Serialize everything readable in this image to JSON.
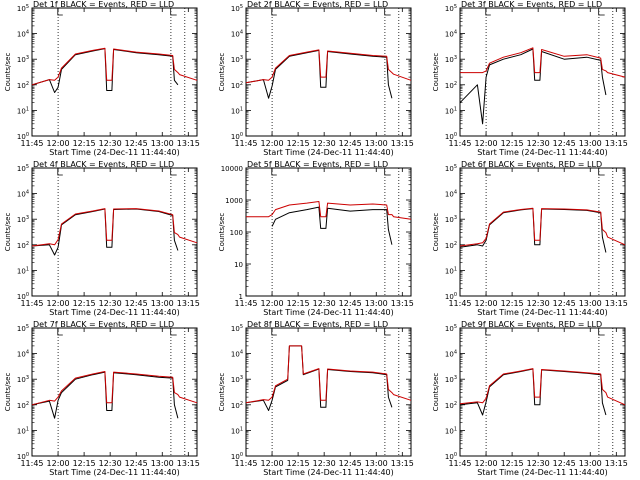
{
  "chart_data": [
    {
      "type": "line",
      "title": "Det 1f BLACK = Events, RED = LLD",
      "xlabel": "Start Time (24-Dec-11 11:44:40)",
      "ylabel": "Counts/sec",
      "yscale": "log",
      "xlim": [
        "11:45",
        "13:20"
      ],
      "ylim": [
        1,
        100000
      ],
      "xticks": [
        "11:45",
        "12:00",
        "12:15",
        "12:30",
        "12:45",
        "13:00",
        "13:15"
      ],
      "yticks": [
        "10^0",
        "10^1",
        "10^2",
        "10^3",
        "10^4",
        "10^5"
      ],
      "series": [
        {
          "color": "#000000",
          "x": [
            "11:45",
            "11:55",
            "11:58",
            "12:00",
            "12:02",
            "12:10",
            "12:20",
            "12:27",
            "12:28",
            "12:31",
            "12:32",
            "12:45",
            "12:58",
            "13:06",
            "13:07",
            "13:09",
            "13:10",
            "13:20"
          ],
          "y": [
            100,
            160,
            50,
            80,
            400,
            1500,
            2100,
            2600,
            60,
            60,
            2400,
            1800,
            1500,
            1300,
            150,
            100,
            null,
            null
          ]
        },
        {
          "color": "#cc0000",
          "x": [
            "11:45",
            "11:55",
            "11:58",
            "12:00",
            "12:02",
            "12:10",
            "12:20",
            "12:27",
            "12:28",
            "12:31",
            "12:32",
            "12:45",
            "12:58",
            "13:06",
            "13:07",
            "13:09",
            "13:10",
            "13:20"
          ],
          "y": [
            100,
            160,
            150,
            200,
            450,
            1600,
            2200,
            2700,
            150,
            150,
            2500,
            1900,
            1600,
            1400,
            400,
            300,
            250,
            150
          ]
        }
      ]
    },
    {
      "type": "line",
      "title": "Det 2f BLACK = Events, RED = LLD",
      "xlabel": "Start Time (24-Dec-11 11:44:40)",
      "ylabel": "Counts/sec",
      "yscale": "log",
      "xlim": [
        "11:45",
        "13:20"
      ],
      "ylim": [
        1,
        100000
      ],
      "xticks": [
        "11:45",
        "12:00",
        "12:15",
        "12:30",
        "12:45",
        "13:00",
        "13:15"
      ],
      "yticks": [
        "10^0",
        "10^1",
        "10^2",
        "10^3",
        "10^4",
        "10^5"
      ],
      "series": [
        {
          "color": "#000000",
          "x": [
            "11:45",
            "11:55",
            "11:58",
            "12:00",
            "12:02",
            "12:10",
            "12:20",
            "12:27",
            "12:28",
            "12:31",
            "12:32",
            "12:45",
            "12:58",
            "13:06",
            "13:07",
            "13:09",
            "13:10",
            "13:20"
          ],
          "y": [
            120,
            160,
            30,
            90,
            400,
            1300,
            1800,
            2200,
            80,
            80,
            2000,
            1600,
            1300,
            1200,
            100,
            30,
            null,
            null
          ]
        },
        {
          "color": "#cc0000",
          "x": [
            "11:45",
            "11:55",
            "11:58",
            "12:00",
            "12:02",
            "12:10",
            "12:20",
            "12:27",
            "12:28",
            "12:31",
            "12:32",
            "12:45",
            "12:58",
            "13:06",
            "13:07",
            "13:09",
            "13:10",
            "13:20"
          ],
          "y": [
            120,
            160,
            150,
            200,
            450,
            1400,
            1900,
            2300,
            200,
            200,
            2100,
            1700,
            1400,
            1300,
            400,
            300,
            260,
            150
          ]
        }
      ]
    },
    {
      "type": "line",
      "title": "Det 3f BLACK = Events, RED = LLD",
      "xlabel": "Start Time (24-Dec-11 11:44:40)",
      "ylabel": "Counts/sec",
      "yscale": "log",
      "xlim": [
        "11:45",
        "13:20"
      ],
      "ylim": [
        1,
        100000
      ],
      "xticks": [
        "11:45",
        "12:00",
        "12:15",
        "12:30",
        "12:45",
        "13:00",
        "13:15"
      ],
      "yticks": [
        "10^0",
        "10^1",
        "10^2",
        "10^3",
        "10^4",
        "10^5"
      ],
      "series": [
        {
          "color": "#000000",
          "x": [
            "11:45",
            "11:55",
            "11:58",
            "12:00",
            "12:02",
            "12:10",
            "12:20",
            "12:27",
            "12:28",
            "12:31",
            "12:32",
            "12:45",
            "12:58",
            "13:06",
            "13:07",
            "13:09",
            "13:10",
            "13:20"
          ],
          "y": [
            20,
            100,
            3,
            200,
            600,
            1000,
            1500,
            2500,
            150,
            150,
            2000,
            1000,
            1200,
            900,
            200,
            40,
            null,
            null
          ]
        },
        {
          "color": "#cc0000",
          "x": [
            "11:45",
            "11:55",
            "11:58",
            "12:00",
            "12:02",
            "12:10",
            "12:20",
            "12:27",
            "12:28",
            "12:31",
            "12:32",
            "12:45",
            "12:58",
            "13:06",
            "13:07",
            "13:09",
            "13:10",
            "13:20"
          ],
          "y": [
            300,
            300,
            300,
            350,
            700,
            1200,
            1800,
            2800,
            300,
            300,
            2400,
            1300,
            1500,
            1100,
            400,
            350,
            300,
            200
          ]
        }
      ]
    },
    {
      "type": "line",
      "title": "Det 4f BLACK = Events, RED = LLD",
      "xlabel": "Start Time (24-Dec-11 11:44:40)",
      "ylabel": "Counts/sec",
      "yscale": "log",
      "xlim": [
        "11:45",
        "13:20"
      ],
      "ylim": [
        1,
        100000
      ],
      "xticks": [
        "11:45",
        "12:00",
        "12:15",
        "12:30",
        "12:45",
        "13:00",
        "13:15"
      ],
      "yticks": [
        "10^0",
        "10^1",
        "10^2",
        "10^3",
        "10^4",
        "10^5"
      ],
      "series": [
        {
          "color": "#000000",
          "x": [
            "11:45",
            "11:55",
            "11:58",
            "12:00",
            "12:02",
            "12:10",
            "12:20",
            "12:27",
            "12:28",
            "12:31",
            "12:32",
            "12:45",
            "12:58",
            "13:06",
            "13:07",
            "13:09",
            "13:10",
            "13:20"
          ],
          "y": [
            90,
            100,
            40,
            80,
            600,
            1500,
            2000,
            2500,
            80,
            80,
            2400,
            2500,
            2000,
            1400,
            150,
            60,
            null,
            null
          ]
        },
        {
          "color": "#cc0000",
          "x": [
            "11:45",
            "11:55",
            "11:58",
            "12:00",
            "12:02",
            "12:10",
            "12:20",
            "12:27",
            "12:28",
            "12:31",
            "12:32",
            "12:45",
            "12:58",
            "13:06",
            "13:07",
            "13:09",
            "13:10",
            "13:20"
          ],
          "y": [
            90,
            110,
            100,
            160,
            650,
            1600,
            2100,
            2600,
            150,
            150,
            2500,
            2600,
            2100,
            1500,
            300,
            250,
            200,
            120
          ]
        }
      ]
    },
    {
      "type": "line",
      "title": "Det 5f BLACK = Events, RED = LLD",
      "xlabel": "Start Time (24-Dec-11 11:44:40)",
      "ylabel": "Counts/sec",
      "yscale": "log",
      "xlim": [
        "11:45",
        "13:20"
      ],
      "ylim": [
        1,
        10000
      ],
      "xticks": [
        "11:45",
        "12:00",
        "12:15",
        "12:30",
        "12:45",
        "13:00",
        "13:15"
      ],
      "yticks": [
        "1",
        "10",
        "100",
        "1000",
        "10000"
      ],
      "series": [
        {
          "color": "#000000",
          "x": [
            "11:45",
            "11:55",
            "11:58",
            "12:00",
            "12:02",
            "12:10",
            "12:20",
            "12:27",
            "12:28",
            "12:31",
            "12:32",
            "12:45",
            "12:58",
            "13:06",
            "13:07",
            "13:09",
            "13:10",
            "13:20"
          ],
          "y": [
            null,
            null,
            null,
            150,
            250,
            400,
            500,
            600,
            130,
            130,
            550,
            450,
            500,
            500,
            120,
            40,
            null,
            null
          ]
        },
        {
          "color": "#cc0000",
          "x": [
            "11:45",
            "11:55",
            "11:58",
            "12:00",
            "12:02",
            "12:10",
            "12:20",
            "12:27",
            "12:28",
            "12:31",
            "12:32",
            "12:45",
            "12:58",
            "13:06",
            "13:07",
            "13:09",
            "13:10",
            "13:20"
          ],
          "y": [
            300,
            300,
            300,
            350,
            500,
            700,
            800,
            900,
            300,
            300,
            800,
            700,
            750,
            700,
            350,
            350,
            300,
            250
          ]
        }
      ]
    },
    {
      "type": "line",
      "title": "Det 6f BLACK = Events, RED = LLD",
      "xlabel": "Start Time (24-Dec-11 11:44:40)",
      "ylabel": "Counts/sec",
      "yscale": "log",
      "xlim": [
        "11:45",
        "13:20"
      ],
      "ylim": [
        1,
        100000
      ],
      "xticks": [
        "11:45",
        "12:00",
        "12:15",
        "12:30",
        "12:45",
        "13:00",
        "13:15"
      ],
      "yticks": [
        "10^0",
        "10^1",
        "10^2",
        "10^3",
        "10^4",
        "10^5"
      ],
      "series": [
        {
          "color": "#000000",
          "x": [
            "11:45",
            "11:55",
            "11:58",
            "12:00",
            "12:02",
            "12:10",
            "12:20",
            "12:27",
            "12:28",
            "12:31",
            "12:32",
            "12:45",
            "12:58",
            "13:06",
            "13:07",
            "13:09",
            "13:10",
            "13:20"
          ],
          "y": [
            80,
            100,
            90,
            150,
            600,
            1800,
            2300,
            2600,
            100,
            100,
            2500,
            2400,
            2200,
            1800,
            200,
            50,
            null,
            null
          ]
        },
        {
          "color": "#cc0000",
          "x": [
            "11:45",
            "11:55",
            "11:58",
            "12:00",
            "12:02",
            "12:10",
            "12:20",
            "12:27",
            "12:28",
            "12:31",
            "12:32",
            "12:45",
            "12:58",
            "13:06",
            "13:07",
            "13:09",
            "13:10",
            "13:20"
          ],
          "y": [
            90,
            110,
            120,
            180,
            650,
            1900,
            2400,
            2700,
            150,
            150,
            2600,
            2500,
            2300,
            1900,
            400,
            300,
            200,
            100
          ]
        }
      ]
    },
    {
      "type": "line",
      "title": "Det 7f BLACK = Events, RED = LLD",
      "xlabel": "Start Time (24-Dec-11 11:44:40)",
      "ylabel": "Counts/sec",
      "yscale": "log",
      "xlim": [
        "11:45",
        "13:20"
      ],
      "ylim": [
        1,
        100000
      ],
      "xticks": [
        "11:45",
        "12:00",
        "12:15",
        "12:30",
        "12:45",
        "13:00",
        "13:15"
      ],
      "yticks": [
        "10^0",
        "10^1",
        "10^2",
        "10^3",
        "10^4",
        "10^5"
      ],
      "series": [
        {
          "color": "#000000",
          "x": [
            "11:45",
            "11:55",
            "11:58",
            "12:00",
            "12:02",
            "12:10",
            "12:20",
            "12:27",
            "12:28",
            "12:31",
            "12:32",
            "12:45",
            "12:58",
            "13:06",
            "13:07",
            "13:09",
            "13:10",
            "13:20"
          ],
          "y": [
            100,
            140,
            30,
            150,
            300,
            1000,
            1500,
            1900,
            60,
            60,
            1800,
            1500,
            1200,
            1100,
            100,
            30,
            null,
            null
          ]
        },
        {
          "color": "#cc0000",
          "x": [
            "11:45",
            "11:55",
            "11:58",
            "12:00",
            "12:02",
            "12:10",
            "12:20",
            "12:27",
            "12:28",
            "12:31",
            "12:32",
            "12:45",
            "12:58",
            "13:06",
            "13:07",
            "13:09",
            "13:10",
            "13:20"
          ],
          "y": [
            100,
            150,
            140,
            200,
            350,
            1100,
            1600,
            2000,
            120,
            120,
            1900,
            1600,
            1300,
            1200,
            300,
            250,
            200,
            120
          ]
        }
      ]
    },
    {
      "type": "line",
      "title": "Det 8f BLACK = Events, RED = LLD",
      "xlabel": "Start Time (24-Dec-11 11:44:40)",
      "ylabel": "Counts/sec",
      "yscale": "log",
      "xlim": [
        "11:45",
        "13:20"
      ],
      "ylim": [
        1,
        100000
      ],
      "xticks": [
        "11:45",
        "12:00",
        "12:15",
        "12:30",
        "12:45",
        "13:00",
        "13:15"
      ],
      "yticks": [
        "10^0",
        "10^1",
        "10^2",
        "10^3",
        "10^4",
        "10^5"
      ],
      "series": [
        {
          "color": "#000000",
          "x": [
            "11:45",
            "11:55",
            "11:58",
            "12:00",
            "12:02",
            "12:09",
            "12:10",
            "12:17",
            "12:18",
            "12:27",
            "12:28",
            "12:31",
            "12:32",
            "12:45",
            "12:58",
            "13:06",
            "13:07",
            "13:09",
            "13:10",
            "13:20"
          ],
          "y": [
            120,
            150,
            60,
            150,
            500,
            900,
            20000,
            20000,
            1500,
            2500,
            80,
            80,
            2400,
            2000,
            1800,
            1500,
            200,
            80,
            null,
            null
          ]
        },
        {
          "color": "#cc0000",
          "x": [
            "11:45",
            "11:55",
            "11:58",
            "12:00",
            "12:02",
            "12:09",
            "12:10",
            "12:17",
            "12:18",
            "12:27",
            "12:28",
            "12:31",
            "12:32",
            "12:45",
            "12:58",
            "13:06",
            "13:07",
            "13:09",
            "13:10",
            "13:20"
          ],
          "y": [
            120,
            160,
            150,
            200,
            550,
            1000,
            20000,
            20000,
            1600,
            2600,
            150,
            150,
            2500,
            2100,
            1900,
            1600,
            400,
            300,
            250,
            150
          ]
        }
      ]
    },
    {
      "type": "line",
      "title": "Det 9f BLACK = Events, RED = LLD",
      "xlabel": "Start Time (24-Dec-11 11:44:40)",
      "ylabel": "Counts/sec",
      "yscale": "log",
      "xlim": [
        "11:45",
        "13:20"
      ],
      "ylim": [
        1,
        100000
      ],
      "xticks": [
        "11:45",
        "12:00",
        "12:15",
        "12:30",
        "12:45",
        "13:00",
        "13:15"
      ],
      "yticks": [
        "10^0",
        "10^1",
        "10^2",
        "10^3",
        "10^4",
        "10^5"
      ],
      "series": [
        {
          "color": "#000000",
          "x": [
            "11:45",
            "11:55",
            "11:58",
            "12:00",
            "12:02",
            "12:10",
            "12:20",
            "12:27",
            "12:28",
            "12:31",
            "12:32",
            "12:45",
            "12:58",
            "13:06",
            "13:07",
            "13:09",
            "13:10",
            "13:20"
          ],
          "y": [
            100,
            120,
            40,
            130,
            500,
            1500,
            2000,
            2500,
            100,
            100,
            2300,
            2000,
            1700,
            1500,
            120,
            40,
            null,
            null
          ]
        },
        {
          "color": "#cc0000",
          "x": [
            "11:45",
            "11:55",
            "11:58",
            "12:00",
            "12:02",
            "12:10",
            "12:20",
            "12:27",
            "12:28",
            "12:31",
            "12:32",
            "12:45",
            "12:58",
            "13:06",
            "13:07",
            "13:09",
            "13:10",
            "13:20"
          ],
          "y": [
            110,
            130,
            120,
            180,
            550,
            1600,
            2100,
            2600,
            200,
            200,
            2400,
            2100,
            1800,
            1600,
            400,
            300,
            200,
            100
          ]
        }
      ]
    }
  ]
}
